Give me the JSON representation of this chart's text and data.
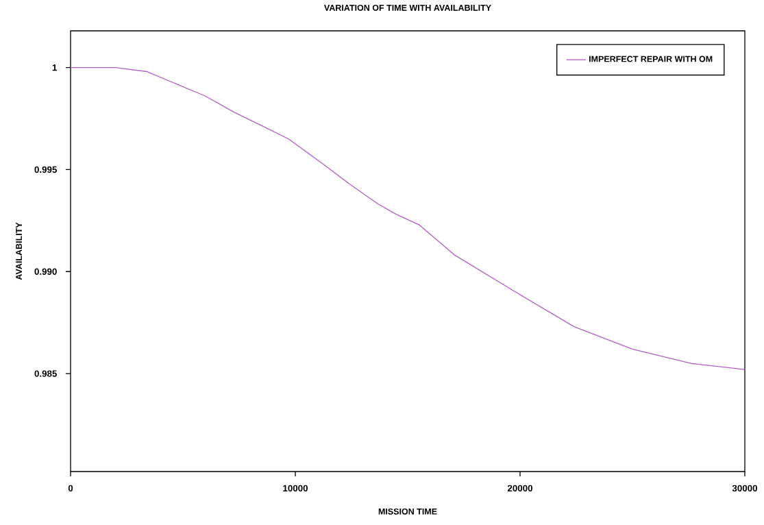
{
  "chart_data": {
    "type": "line",
    "title": "VARIATION OF TIME WITH AVAILABILITY",
    "xlabel": "MISSION TIME",
    "ylabel": "AVAILABILITY",
    "x": [
      0,
      2000,
      3400,
      4700,
      6000,
      7300,
      8600,
      9700,
      11200,
      12400,
      13700,
      14500,
      15500,
      17100,
      19800,
      22400,
      25000,
      27600,
      30000
    ],
    "series": [
      {
        "name": "IMPERFECT REPAIR WITH OM",
        "color": "#b060c0",
        "values": [
          1.0,
          1.0,
          0.9998,
          0.9992,
          0.9986,
          0.9978,
          0.9971,
          0.9965,
          0.9953,
          0.9943,
          0.9933,
          0.9928,
          0.9923,
          0.9908,
          0.989,
          0.9873,
          0.9862,
          0.9855,
          0.9852
        ]
      }
    ],
    "xlim": [
      0,
      30000
    ],
    "ylim": [
      0.9802,
      1.0018
    ],
    "xticks": [
      0,
      10000,
      20000,
      30000
    ],
    "yticks": [
      0.985,
      {
        "value": 0.99,
        "label": "0.990"
      },
      0.995,
      1
    ],
    "grid": false,
    "legend": "top right",
    "marker": "none",
    "line_style": "solid"
  }
}
